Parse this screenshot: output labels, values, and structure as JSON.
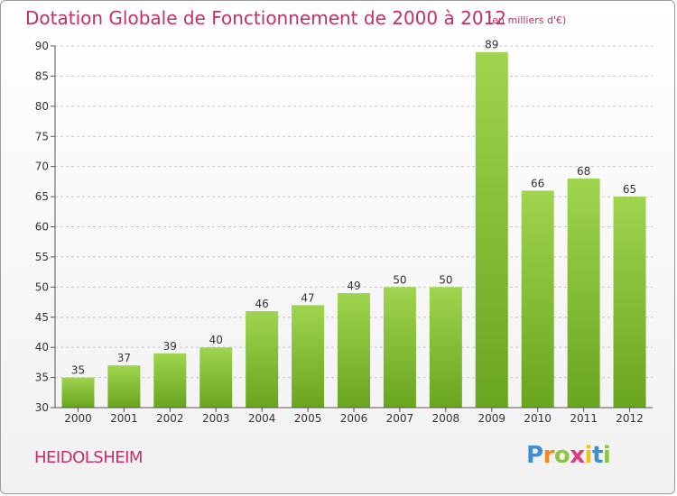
{
  "title": "Dotation Globale de Fonctionnement de 2000 à 2012",
  "subtitle": "(en milliers d'€)",
  "commune": "HEIDOLSHEIM",
  "logo": {
    "letters": [
      {
        "ch": "P",
        "color": "#3a8fd6"
      },
      {
        "ch": "r",
        "color": "#f08a1c"
      },
      {
        "ch": "o",
        "color": "#8dc63f"
      },
      {
        "ch": "x",
        "color": "#e03a7d"
      },
      {
        "ch": "i",
        "color": "#f3c01a"
      },
      {
        "ch": "t",
        "color": "#3a8fd6"
      },
      {
        "ch": "i",
        "color": "#8dc63f"
      }
    ]
  },
  "chart_data": {
    "type": "bar",
    "categories": [
      "2000",
      "2001",
      "2002",
      "2003",
      "2004",
      "2005",
      "2006",
      "2007",
      "2008",
      "2009",
      "2010",
      "2011",
      "2012"
    ],
    "values": [
      35,
      37,
      39,
      40,
      46,
      47,
      49,
      50,
      50,
      89,
      66,
      68,
      65
    ],
    "ylim": [
      30,
      90
    ],
    "yticks": [
      30,
      35,
      40,
      45,
      50,
      55,
      60,
      65,
      70,
      75,
      80,
      85,
      90
    ],
    "grid": true,
    "bar_color_top": "#9fd44e",
    "bar_color_bottom": "#6aa51f",
    "grid_color": "#c8c8c8",
    "text_color": "#333333"
  }
}
